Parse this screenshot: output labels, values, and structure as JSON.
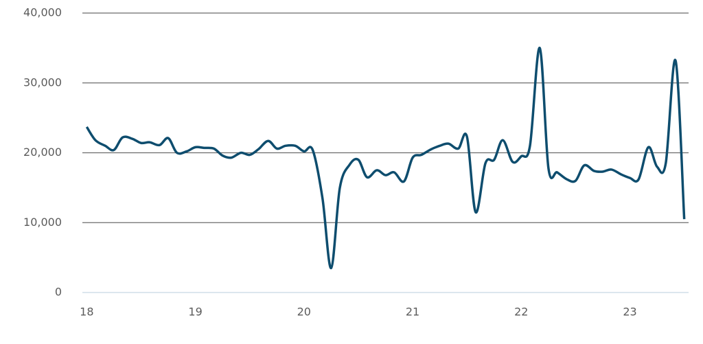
{
  "chart_data": {
    "type": "line",
    "x": [
      18,
      18.08,
      18.17,
      18.25,
      18.33,
      18.42,
      18.5,
      18.58,
      18.67,
      18.75,
      18.83,
      18.92,
      19,
      19.08,
      19.17,
      19.25,
      19.33,
      19.42,
      19.5,
      19.58,
      19.67,
      19.75,
      19.83,
      19.92,
      20,
      20.08,
      20.17,
      20.25,
      20.33,
      20.42,
      20.5,
      20.58,
      20.67,
      20.75,
      20.83,
      20.92,
      21,
      21.08,
      21.17,
      21.25,
      21.33,
      21.42,
      21.5,
      21.58,
      21.67,
      21.75,
      21.83,
      21.92,
      22,
      22.08,
      22.17,
      22.25,
      22.33,
      22.42,
      22.5,
      22.58,
      22.67,
      22.75,
      22.83,
      22.92,
      23,
      23.08,
      23.17,
      23.25,
      23.33,
      23.42,
      23.5
    ],
    "series": [
      {
        "color": "#0e4d6e",
        "values": [
          23700,
          21800,
          21000,
          20400,
          22200,
          22000,
          21400,
          21500,
          21100,
          22100,
          20000,
          20200,
          20800,
          20700,
          20600,
          19600,
          19300,
          20000,
          19700,
          20500,
          21700,
          20600,
          21000,
          21000,
          20200,
          20400,
          13500,
          3500,
          15000,
          18300,
          19000,
          16500,
          17500,
          16800,
          17200,
          15900,
          19300,
          19700,
          20500,
          21000,
          21300,
          20600,
          22300,
          11500,
          18500,
          19000,
          21800,
          18700,
          19500,
          21000,
          35000,
          17800,
          17200,
          16200,
          16000,
          18200,
          17400,
          17300,
          17600,
          16900,
          16400,
          16200,
          20800,
          18000,
          18500,
          33200,
          10500
        ]
      }
    ],
    "xlim": [
      17.96,
      23.54
    ],
    "xticks": [
      18,
      19,
      20,
      21,
      22,
      23
    ],
    "ylim": [
      0,
      40000
    ],
    "yticks": [
      0,
      {
        "value": 10000,
        "label": "10,000"
      },
      {
        "value": 20000,
        "label": "20,000"
      },
      {
        "value": 30000,
        "label": "30,000"
      },
      {
        "value": 40000,
        "label": "40,000"
      }
    ],
    "grid": true
  }
}
